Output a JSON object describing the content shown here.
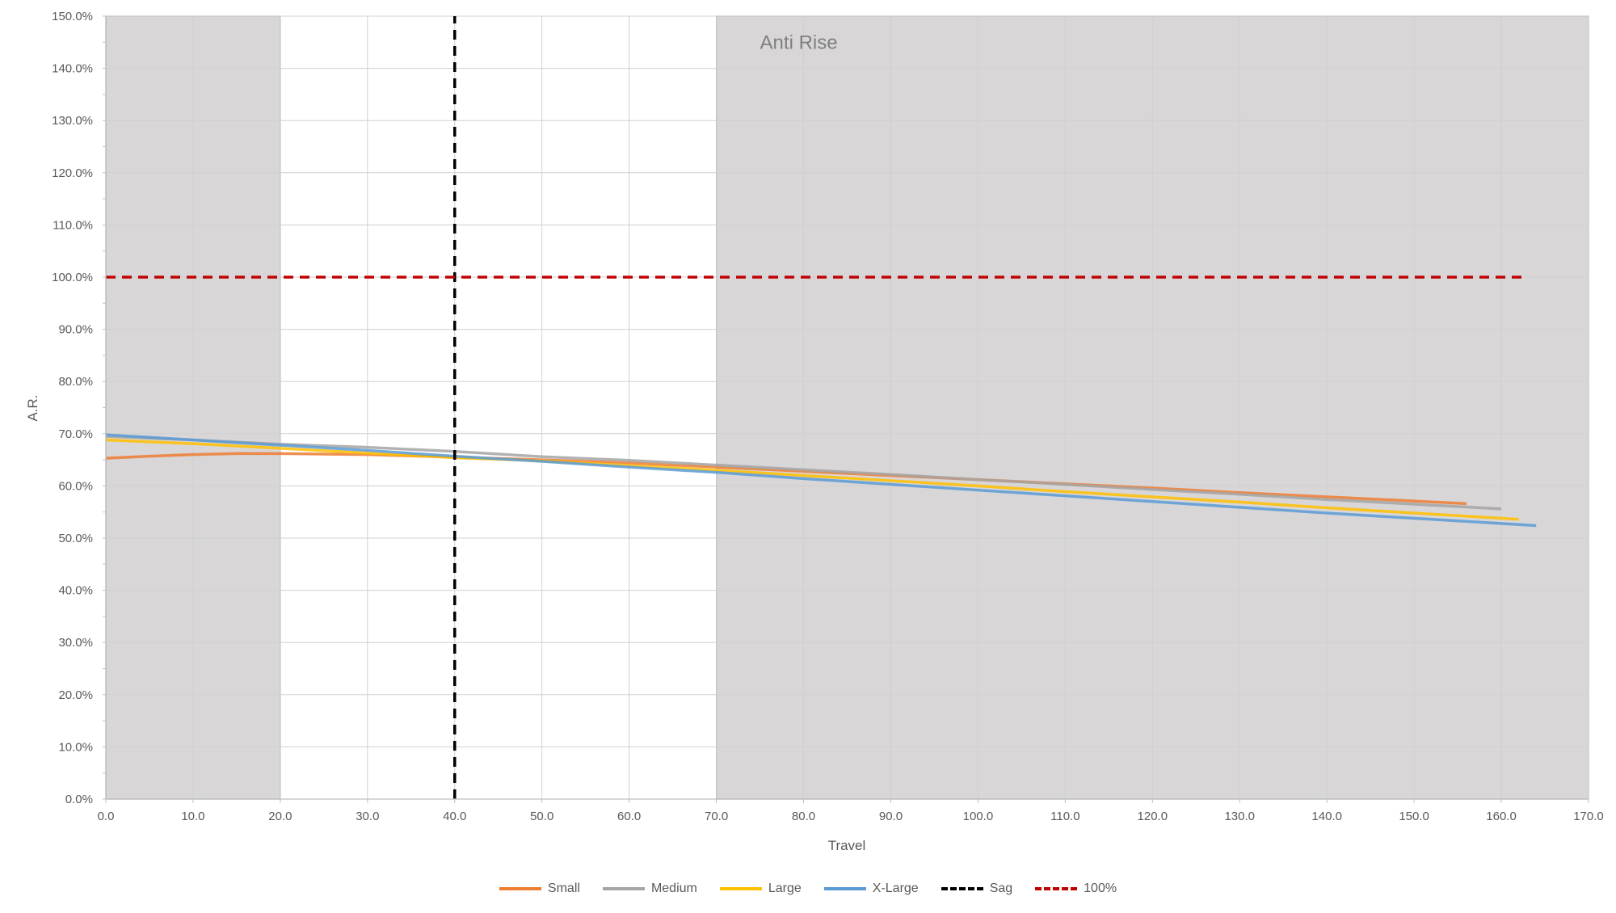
{
  "chart_data": {
    "type": "line",
    "xlabel": "Travel",
    "ylabel": "A.R.",
    "xlim": [
      0,
      170
    ],
    "ylim": [
      0,
      150
    ],
    "x_ticks": [
      "0.0",
      "10.0",
      "20.0",
      "30.0",
      "40.0",
      "50.0",
      "60.0",
      "70.0",
      "80.0",
      "90.0",
      "100.0",
      "110.0",
      "120.0",
      "130.0",
      "140.0",
      "150.0",
      "160.0",
      "170.0"
    ],
    "y_ticks": [
      "0.0%",
      "10.0%",
      "20.0%",
      "30.0%",
      "40.0%",
      "50.0%",
      "60.0%",
      "70.0%",
      "80.0%",
      "90.0%",
      "100.0%",
      "110.0%",
      "120.0%",
      "130.0%",
      "140.0%",
      "150.0%"
    ],
    "grid": true,
    "legend_position": "bottom",
    "shaded_regions": [
      {
        "x_start": 0,
        "x_end": 20,
        "color": "#d9d6d8"
      },
      {
        "x_start": 70,
        "x_end": 170,
        "color": "#d9d6d8"
      }
    ],
    "annotations": [
      {
        "text": "Anti Rise",
        "x": 75,
        "y": 145
      }
    ],
    "series": [
      {
        "name": "Small",
        "color": "#ED7D31",
        "dash": false,
        "x": [
          0,
          5,
          10,
          15,
          20,
          30,
          40,
          50,
          60,
          70,
          80,
          90,
          100,
          110,
          120,
          130,
          140,
          150,
          156
        ],
        "y": [
          65.3,
          65.7,
          66.0,
          66.2,
          66.2,
          66.0,
          65.5,
          65.0,
          64.4,
          63.6,
          62.8,
          62.0,
          61.2,
          60.4,
          59.6,
          58.7,
          57.9,
          57.1,
          56.6
        ]
      },
      {
        "name": "Medium",
        "color": "#A5A5A5",
        "dash": false,
        "x": [
          0,
          10,
          20,
          30,
          40,
          50,
          60,
          70,
          80,
          90,
          100,
          110,
          120,
          130,
          140,
          150,
          160
        ],
        "y": [
          69.5,
          68.8,
          68.0,
          67.4,
          66.6,
          65.6,
          64.9,
          64.0,
          63.1,
          62.2,
          61.2,
          60.3,
          59.3,
          58.4,
          57.4,
          56.5,
          55.6
        ]
      },
      {
        "name": "Large",
        "color": "#FFC000",
        "dash": false,
        "x": [
          0,
          10,
          20,
          30,
          40,
          50,
          60,
          70,
          80,
          90,
          100,
          110,
          120,
          130,
          140,
          150,
          162
        ],
        "y": [
          68.8,
          68.1,
          67.2,
          66.3,
          65.4,
          64.8,
          63.9,
          63.0,
          62.0,
          61.0,
          60.0,
          58.9,
          57.9,
          56.9,
          55.8,
          54.8,
          53.6
        ]
      },
      {
        "name": "X-Large",
        "color": "#5B9BD5",
        "dash": false,
        "x": [
          0,
          10,
          20,
          30,
          40,
          50,
          60,
          70,
          80,
          90,
          100,
          110,
          120,
          130,
          140,
          150,
          164
        ],
        "y": [
          69.8,
          68.8,
          67.8,
          66.8,
          65.7,
          64.7,
          63.6,
          62.6,
          61.4,
          60.3,
          59.2,
          58.1,
          57.0,
          55.9,
          54.8,
          53.8,
          52.4
        ]
      },
      {
        "name": "Sag",
        "color": "#000000",
        "dash": true,
        "x": [
          40,
          40
        ],
        "y": [
          0,
          150
        ]
      },
      {
        "name": "100%",
        "color": "#C00000",
        "dash": true,
        "x": [
          0,
          163
        ],
        "y": [
          100,
          100
        ]
      }
    ]
  }
}
